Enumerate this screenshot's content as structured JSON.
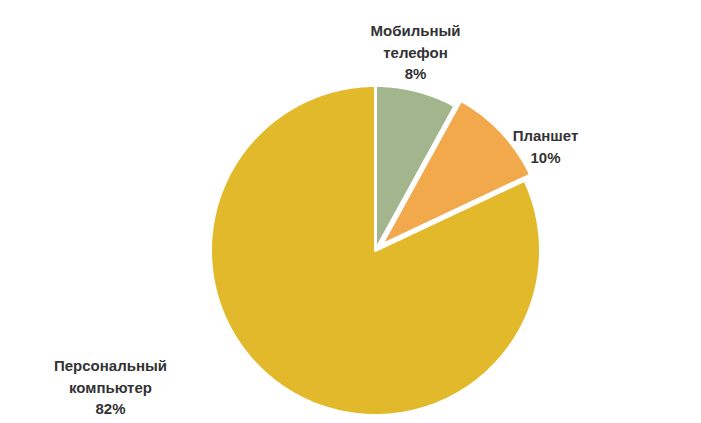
{
  "chart_data": {
    "type": "pie",
    "categories": [
      "Мобильный телефон",
      "Планшет",
      "Персональный компьютер"
    ],
    "values": [
      8,
      10,
      82
    ],
    "value_labels": [
      "8%",
      "10%",
      "82%"
    ],
    "colors": [
      "#a3b58c",
      "#f2a94c",
      "#e3b92c"
    ],
    "data_labels": true
  }
}
